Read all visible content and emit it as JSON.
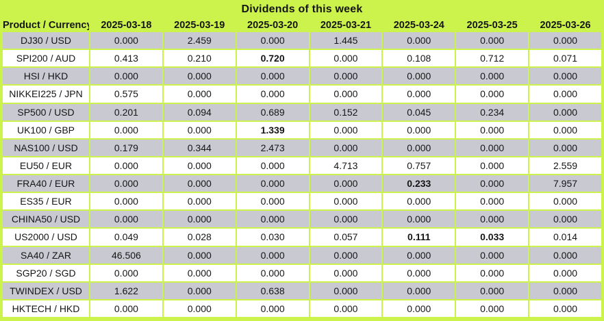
{
  "title": "Dividends of this week",
  "colors": {
    "accent": "#ccf24c",
    "row_alt": "#c9c9d2",
    "row": "#ffffff",
    "text": "#151515"
  },
  "table": {
    "product_header": "Product / Currency",
    "date_columns": [
      "2025-03-18",
      "2025-03-19",
      "2025-03-20",
      "2025-03-21",
      "2025-03-24",
      "2025-03-25",
      "2025-03-26"
    ],
    "rows": [
      {
        "product": "DJ30 / USD",
        "values": [
          "0.000",
          "2.459",
          "0.000",
          "1.445",
          "0.000",
          "0.000",
          "0.000"
        ],
        "bold": []
      },
      {
        "product": "SPI200 / AUD",
        "values": [
          "0.413",
          "0.210",
          "0.720",
          "0.000",
          "0.108",
          "0.712",
          "0.071"
        ],
        "bold": [
          2
        ]
      },
      {
        "product": "HSI / HKD",
        "values": [
          "0.000",
          "0.000",
          "0.000",
          "0.000",
          "0.000",
          "0.000",
          "0.000"
        ],
        "bold": []
      },
      {
        "product": "NIKKEI225 / JPN",
        "values": [
          "0.575",
          "0.000",
          "0.000",
          "0.000",
          "0.000",
          "0.000",
          "0.000"
        ],
        "bold": []
      },
      {
        "product": "SP500 / USD",
        "values": [
          "0.201",
          "0.094",
          "0.689",
          "0.152",
          "0.045",
          "0.234",
          "0.000"
        ],
        "bold": []
      },
      {
        "product": "UK100 / GBP",
        "values": [
          "0.000",
          "0.000",
          "1.339",
          "0.000",
          "0.000",
          "0.000",
          "0.000"
        ],
        "bold": [
          2
        ]
      },
      {
        "product": "NAS100 / USD",
        "values": [
          "0.179",
          "0.344",
          "2.473",
          "0.000",
          "0.000",
          "0.000",
          "0.000"
        ],
        "bold": []
      },
      {
        "product": "EU50 / EUR",
        "values": [
          "0.000",
          "0.000",
          "0.000",
          "4.713",
          "0.757",
          "0.000",
          "2.559"
        ],
        "bold": []
      },
      {
        "product": "FRA40 / EUR",
        "values": [
          "0.000",
          "0.000",
          "0.000",
          "0.000",
          "0.233",
          "0.000",
          "7.957"
        ],
        "bold": [
          4
        ]
      },
      {
        "product": "ES35 / EUR",
        "values": [
          "0.000",
          "0.000",
          "0.000",
          "0.000",
          "0.000",
          "0.000",
          "0.000"
        ],
        "bold": []
      },
      {
        "product": "CHINA50 / USD",
        "values": [
          "0.000",
          "0.000",
          "0.000",
          "0.000",
          "0.000",
          "0.000",
          "0.000"
        ],
        "bold": []
      },
      {
        "product": "US2000 / USD",
        "values": [
          "0.049",
          "0.028",
          "0.030",
          "0.057",
          "0.111",
          "0.033",
          "0.014"
        ],
        "bold": [
          4,
          5
        ]
      },
      {
        "product": "SA40 / ZAR",
        "values": [
          "46.506",
          "0.000",
          "0.000",
          "0.000",
          "0.000",
          "0.000",
          "0.000"
        ],
        "bold": []
      },
      {
        "product": "SGP20 / SGD",
        "values": [
          "0.000",
          "0.000",
          "0.000",
          "0.000",
          "0.000",
          "0.000",
          "0.000"
        ],
        "bold": []
      },
      {
        "product": "TWINDEX / USD",
        "values": [
          "1.622",
          "0.000",
          "0.638",
          "0.000",
          "0.000",
          "0.000",
          "0.000"
        ],
        "bold": []
      },
      {
        "product": "HKTECH / HKD",
        "values": [
          "0.000",
          "0.000",
          "0.000",
          "0.000",
          "0.000",
          "0.000",
          "0.000"
        ],
        "bold": []
      }
    ]
  },
  "chart_data": {
    "type": "table",
    "title": "Dividends of this week",
    "columns": [
      "Product / Currency",
      "2025-03-18",
      "2025-03-19",
      "2025-03-20",
      "2025-03-21",
      "2025-03-24",
      "2025-03-25",
      "2025-03-26"
    ],
    "rows": [
      [
        "DJ30 / USD",
        0.0,
        2.459,
        0.0,
        1.445,
        0.0,
        0.0,
        0.0
      ],
      [
        "SPI200 / AUD",
        0.413,
        0.21,
        0.72,
        0.0,
        0.108,
        0.712,
        0.071
      ],
      [
        "HSI / HKD",
        0.0,
        0.0,
        0.0,
        0.0,
        0.0,
        0.0,
        0.0
      ],
      [
        "NIKKEI225 / JPN",
        0.575,
        0.0,
        0.0,
        0.0,
        0.0,
        0.0,
        0.0
      ],
      [
        "SP500 / USD",
        0.201,
        0.094,
        0.689,
        0.152,
        0.045,
        0.234,
        0.0
      ],
      [
        "UK100 / GBP",
        0.0,
        0.0,
        1.339,
        0.0,
        0.0,
        0.0,
        0.0
      ],
      [
        "NAS100 / USD",
        0.179,
        0.344,
        2.473,
        0.0,
        0.0,
        0.0,
        0.0
      ],
      [
        "EU50 / EUR",
        0.0,
        0.0,
        0.0,
        4.713,
        0.757,
        0.0,
        2.559
      ],
      [
        "FRA40 / EUR",
        0.0,
        0.0,
        0.0,
        0.0,
        0.233,
        0.0,
        7.957
      ],
      [
        "ES35 / EUR",
        0.0,
        0.0,
        0.0,
        0.0,
        0.0,
        0.0,
        0.0
      ],
      [
        "CHINA50 / USD",
        0.0,
        0.0,
        0.0,
        0.0,
        0.0,
        0.0,
        0.0
      ],
      [
        "US2000 / USD",
        0.049,
        0.028,
        0.03,
        0.057,
        0.111,
        0.033,
        0.014
      ],
      [
        "SA40 / ZAR",
        46.506,
        0.0,
        0.0,
        0.0,
        0.0,
        0.0,
        0.0
      ],
      [
        "SGP20 / SGD",
        0.0,
        0.0,
        0.0,
        0.0,
        0.0,
        0.0,
        0.0
      ],
      [
        "TWINDEX / USD",
        1.622,
        0.0,
        0.638,
        0.0,
        0.0,
        0.0,
        0.0
      ],
      [
        "HKTECH / HKD",
        0.0,
        0.0,
        0.0,
        0.0,
        0.0,
        0.0,
        0.0
      ]
    ]
  }
}
